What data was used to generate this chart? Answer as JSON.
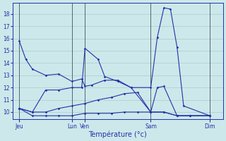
{
  "background_color": "#cde8ea",
  "grid_color": "#aacccc",
  "line_color": "#2233aa",
  "xlabel": "Température (°c)",
  "ylim": [
    9.4,
    18.9
  ],
  "yticks": [
    10,
    11,
    12,
    13,
    14,
    15,
    16,
    17,
    18
  ],
  "xlim": [
    0,
    32
  ],
  "day_labels": [
    "Jeu",
    "Lun",
    "Ven",
    "Sam",
    "Dim"
  ],
  "day_positions": [
    1,
    9,
    11,
    21,
    30
  ],
  "vline_positions": [
    1,
    9,
    11,
    21,
    30
  ],
  "line1_x": [
    1,
    2,
    3,
    5,
    7,
    9,
    10.5,
    11,
    12,
    14,
    16,
    18,
    21,
    22,
    23,
    24,
    25,
    26,
    30
  ],
  "line1_y": [
    15.8,
    14.3,
    13.5,
    13.0,
    13.1,
    12.5,
    12.7,
    12.1,
    12.2,
    12.6,
    12.6,
    12.0,
    12.0,
    16.1,
    18.5,
    18.4,
    15.3,
    10.5,
    9.7
  ],
  "line2_x": [
    1,
    3,
    5,
    7,
    9,
    10.5,
    11,
    13,
    14,
    16,
    18,
    21,
    22,
    23,
    25,
    27,
    30
  ],
  "line2_y": [
    10.3,
    10.0,
    11.8,
    11.8,
    12.0,
    12.0,
    15.2,
    14.3,
    12.9,
    12.5,
    12.0,
    10.0,
    12.0,
    12.1,
    9.7,
    9.7,
    9.7
  ],
  "line3_x": [
    1,
    3,
    5,
    7,
    9,
    11,
    13,
    15,
    17,
    19,
    21,
    23,
    25,
    27,
    30
  ],
  "line3_y": [
    10.3,
    10.0,
    10.0,
    10.3,
    10.5,
    10.7,
    11.0,
    11.2,
    11.5,
    11.6,
    10.0,
    10.0,
    9.7,
    9.7,
    9.7
  ],
  "line4_x": [
    1,
    3,
    5,
    7,
    9,
    11,
    13,
    15,
    17,
    19,
    21,
    23,
    25,
    27,
    30
  ],
  "line4_y": [
    10.3,
    9.7,
    9.7,
    9.7,
    9.7,
    9.9,
    9.9,
    9.9,
    10.0,
    10.0,
    10.0,
    10.0,
    9.7,
    9.7,
    9.7
  ]
}
